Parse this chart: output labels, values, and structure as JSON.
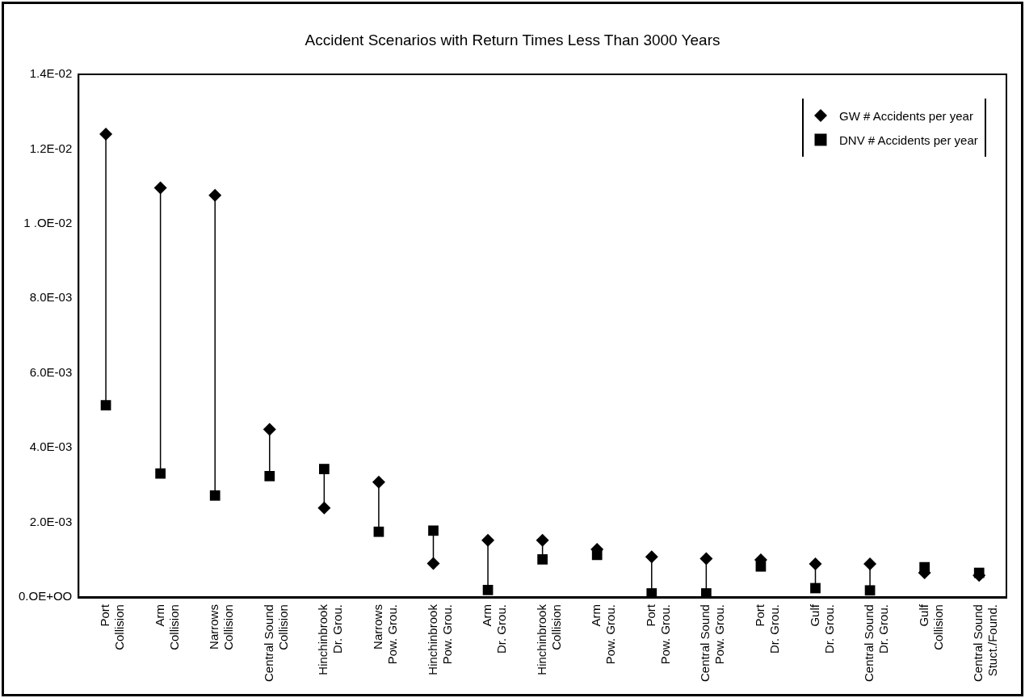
{
  "chart_data": {
    "type": "scatter",
    "title": "Accident Scenarios with Return Times Less Than 3000 Years",
    "categories": [
      "Port\nCollision",
      "Arm\nCollision",
      "Narrows\nCollision",
      "Central Sound\nCollision",
      "Hinchinbrook\nDr. Grou.",
      "Narrows\nPow. Grou.",
      "Hinchinbrook\nPow. Grou.",
      "Arm\nDr. Grou.",
      "Hinchinbrook\nCollision",
      "Arm\nPow. Grou.",
      "Port\nPow. Grou.",
      "Central Sound\nPow. Grou.",
      "Port\nDr. Grou.",
      "Gulf\nDr. Grou.",
      "Central Sound\nDr. Grou.",
      "Gulf\nCollision",
      "Central Sound\nStuct./Found."
    ],
    "series": [
      {
        "name": "GW # Accidents per year",
        "color": "#000000",
        "marker": "diamond",
        "values": [
          0.0124,
          0.01096,
          0.01076,
          0.00449,
          0.00239,
          0.00308,
          0.0009,
          0.00152,
          0.00152,
          0.00128,
          0.00108,
          0.00103,
          0.001,
          0.00089,
          0.00089,
          0.00065,
          0.00058
        ]
      },
      {
        "name": "DNV # Accidents per year",
        "color": "#000000",
        "marker": "square",
        "values": [
          0.00514,
          0.00331,
          0.00272,
          0.00324,
          0.00343,
          0.00175,
          0.00178,
          0.00019,
          0.00101,
          0.00113,
          0.0001,
          0.0001,
          0.00082,
          0.00024,
          0.00018,
          0.0008,
          0.00065
        ]
      }
    ],
    "ylim": [
      0,
      0.014
    ],
    "yticks": [
      {
        "value": 0,
        "label": "0.OE+OO"
      },
      {
        "value": 0.002,
        "label": "2.0E-03"
      },
      {
        "value": 0.004,
        "label": "4.0E-03"
      },
      {
        "value": 0.006,
        "label": "6.0E-03"
      },
      {
        "value": 0.008,
        "label": "8.0E-03"
      },
      {
        "value": 0.01,
        "label": "1 .OE-02"
      },
      {
        "value": 0.012,
        "label": "1.2E-02"
      },
      {
        "value": 0.014,
        "label": "1.4E-02"
      }
    ],
    "grid": false,
    "legend": "top right"
  }
}
